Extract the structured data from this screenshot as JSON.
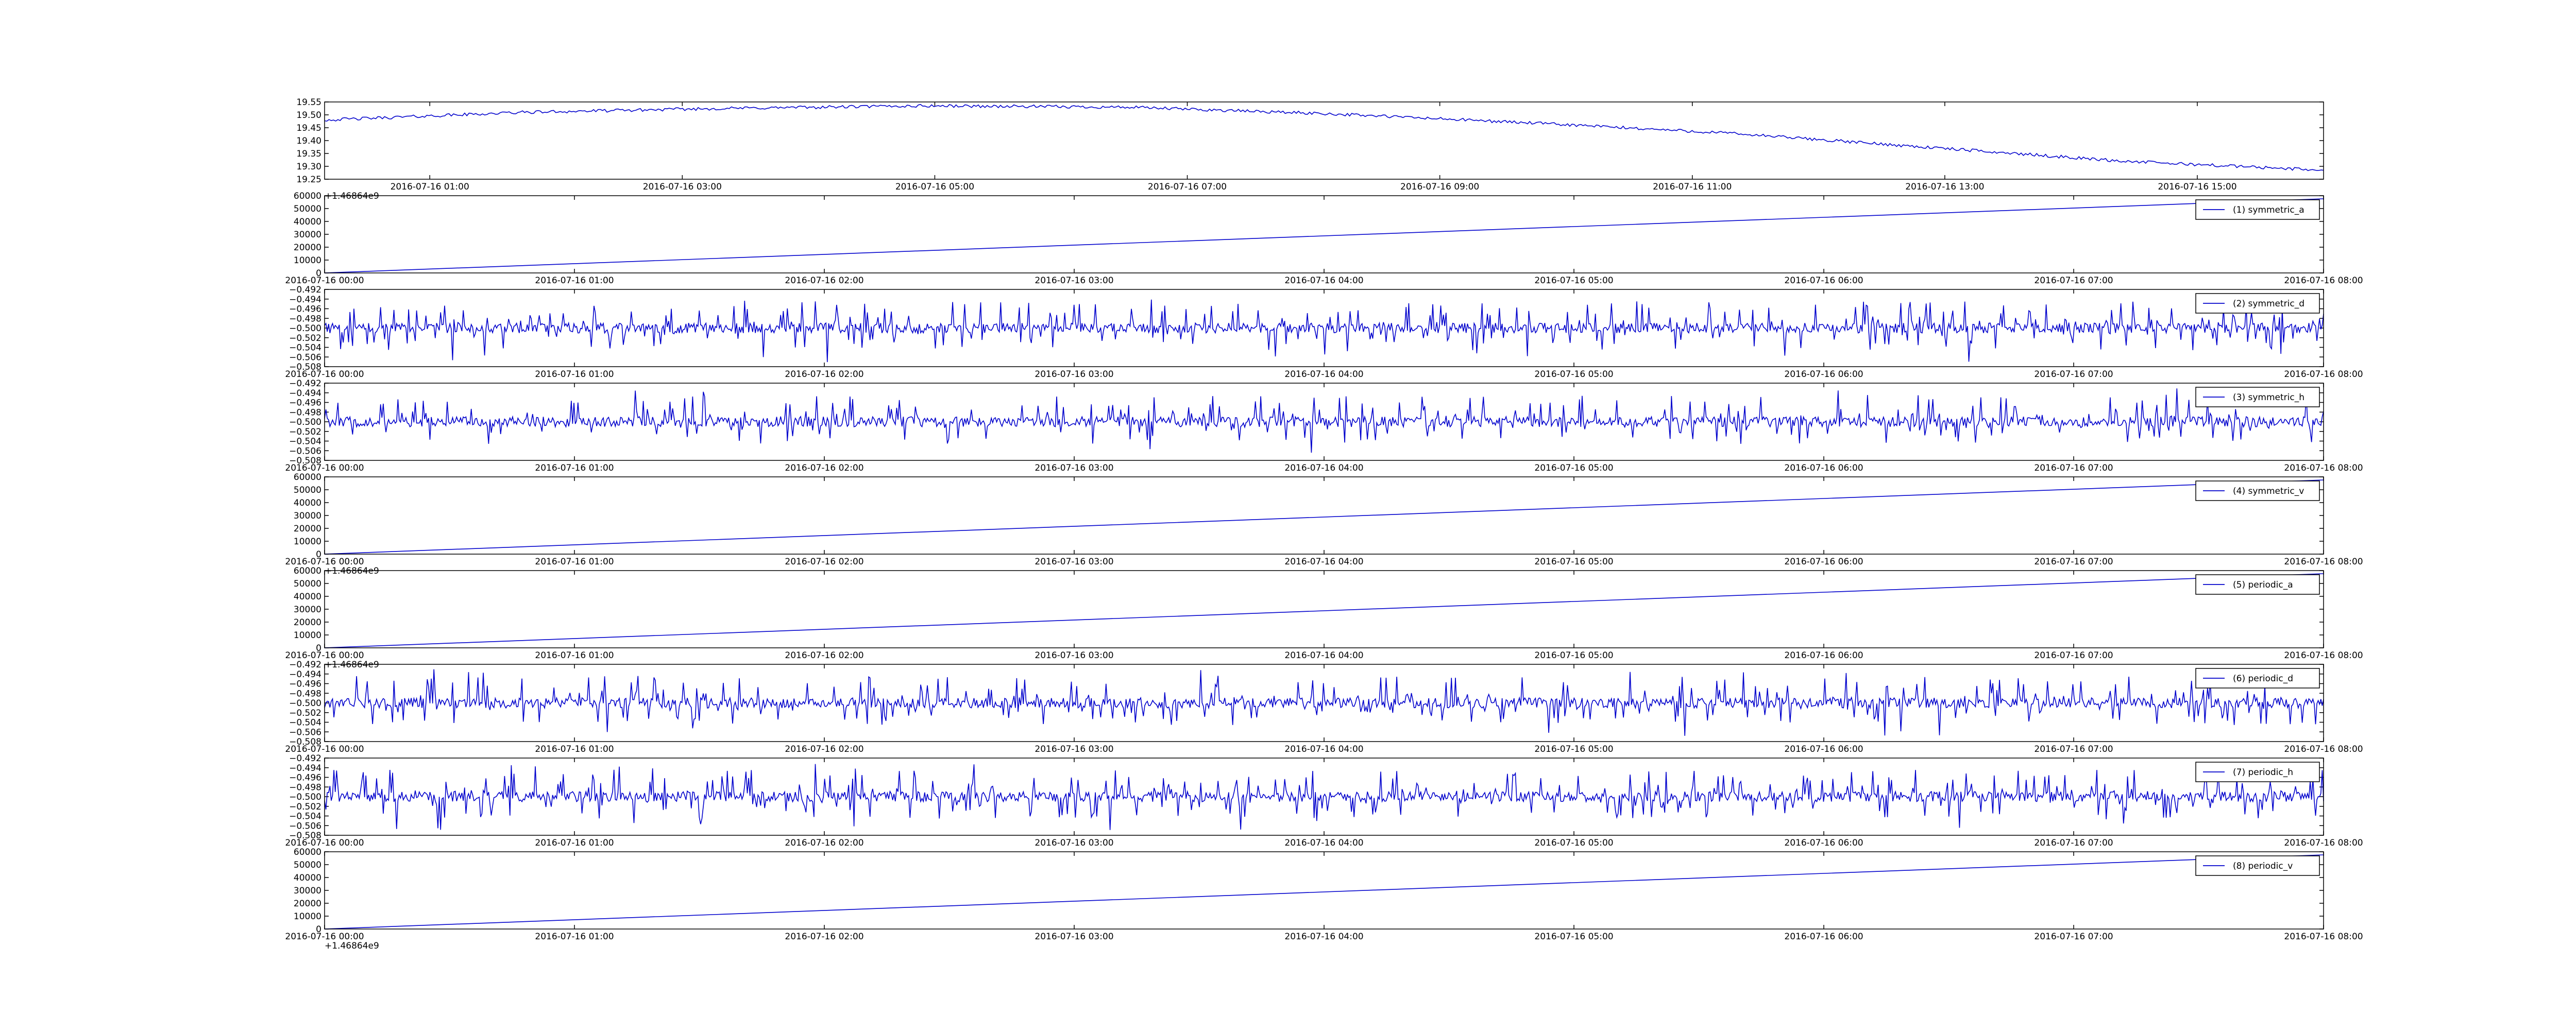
{
  "colors": {
    "line": "#0000cc",
    "axis": "#000000",
    "background": "#ffffff",
    "legend_border": "#000000"
  },
  "chart_data": [
    {
      "type": "line",
      "offset_label": "+1.46864e9",
      "x_ticks": [
        "2016-07-16 01:00",
        "2016-07-16 03:00",
        "2016-07-16 05:00",
        "2016-07-16 07:00",
        "2016-07-16 09:00",
        "2016-07-16 11:00",
        "2016-07-16 13:00",
        "2016-07-16 15:00"
      ],
      "y_ticks": [
        "19.55",
        "19.50",
        "19.45",
        "19.40",
        "19.35",
        "19.30",
        "19.25"
      ],
      "ylim": [
        19.25,
        19.55
      ],
      "series": [
        {
          "x": [
            0,
            0.1,
            0.2,
            0.3,
            0.4,
            0.5,
            0.6,
            0.7,
            0.8,
            0.9,
            1.0
          ],
          "values": [
            19.48,
            19.51,
            19.525,
            19.535,
            19.53,
            19.505,
            19.47,
            19.43,
            19.375,
            19.32,
            19.285
          ]
        }
      ]
    },
    {
      "type": "line",
      "x_ticks": [
        "2016-07-16 00:00",
        "2016-07-16 01:00",
        "2016-07-16 02:00",
        "2016-07-16 03:00",
        "2016-07-16 04:00",
        "2016-07-16 05:00",
        "2016-07-16 06:00",
        "2016-07-16 07:00",
        "2016-07-16 08:00"
      ],
      "y_ticks": [
        "60000",
        "50000",
        "40000",
        "30000",
        "20000",
        "10000",
        "0"
      ],
      "ylim": [
        0,
        60000
      ],
      "legend_position": "upper-right",
      "series": [
        {
          "name": "(1) symmetric_a",
          "x": [
            0,
            8
          ],
          "values": [
            0,
            57600
          ]
        }
      ]
    },
    {
      "type": "line",
      "x_ticks": [
        "2016-07-16 00:00",
        "2016-07-16 01:00",
        "2016-07-16 02:00",
        "2016-07-16 03:00",
        "2016-07-16 04:00",
        "2016-07-16 05:00",
        "2016-07-16 06:00",
        "2016-07-16 07:00",
        "2016-07-16 08:00"
      ],
      "y_ticks": [
        "−0.492",
        "−0.494",
        "−0.496",
        "−0.498",
        "−0.500",
        "−0.502",
        "−0.504",
        "−0.506",
        "−0.508"
      ],
      "ylim": [
        -0.508,
        -0.492
      ],
      "center": -0.5,
      "amplitude": 0.006,
      "legend_position": "upper-right",
      "series": [
        {
          "name": "(2) symmetric_d"
        }
      ]
    },
    {
      "type": "line",
      "x_ticks": [
        "2016-07-16 00:00",
        "2016-07-16 01:00",
        "2016-07-16 02:00",
        "2016-07-16 03:00",
        "2016-07-16 04:00",
        "2016-07-16 05:00",
        "2016-07-16 06:00",
        "2016-07-16 07:00",
        "2016-07-16 08:00"
      ],
      "y_ticks": [
        "−0.492",
        "−0.494",
        "−0.496",
        "−0.498",
        "−0.500",
        "−0.502",
        "−0.504",
        "−0.506",
        "−0.508"
      ],
      "ylim": [
        -0.508,
        -0.492
      ],
      "center": -0.5,
      "amplitude": 0.006,
      "legend_position": "upper-right",
      "series": [
        {
          "name": "(3) symmetric_h"
        }
      ]
    },
    {
      "type": "line",
      "offset_label": "+1.46864e9",
      "x_ticks": [
        "2016-07-16 00:00",
        "2016-07-16 01:00",
        "2016-07-16 02:00",
        "2016-07-16 03:00",
        "2016-07-16 04:00",
        "2016-07-16 05:00",
        "2016-07-16 06:00",
        "2016-07-16 07:00",
        "2016-07-16 08:00"
      ],
      "y_ticks": [
        "60000",
        "50000",
        "40000",
        "30000",
        "20000",
        "10000",
        "0"
      ],
      "ylim": [
        0,
        60000
      ],
      "legend_position": "upper-right",
      "series": [
        {
          "name": "(4) symmetric_v",
          "x": [
            0,
            8
          ],
          "values": [
            0,
            57600
          ]
        }
      ]
    },
    {
      "type": "line",
      "offset_label": "+1.46864e9",
      "x_ticks": [
        "2016-07-16 00:00",
        "2016-07-16 01:00",
        "2016-07-16 02:00",
        "2016-07-16 03:00",
        "2016-07-16 04:00",
        "2016-07-16 05:00",
        "2016-07-16 06:00",
        "2016-07-16 07:00",
        "2016-07-16 08:00"
      ],
      "y_ticks": [
        "60000",
        "50000",
        "40000",
        "30000",
        "20000",
        "10000",
        "0"
      ],
      "ylim": [
        0,
        60000
      ],
      "legend_position": "upper-right",
      "series": [
        {
          "name": "(5) periodic_a",
          "x": [
            0,
            8
          ],
          "values": [
            0,
            57600
          ]
        }
      ]
    },
    {
      "type": "line",
      "x_ticks": [
        "2016-07-16 00:00",
        "2016-07-16 01:00",
        "2016-07-16 02:00",
        "2016-07-16 03:00",
        "2016-07-16 04:00",
        "2016-07-16 05:00",
        "2016-07-16 06:00",
        "2016-07-16 07:00",
        "2016-07-16 08:00"
      ],
      "y_ticks": [
        "−0.492",
        "−0.494",
        "−0.496",
        "−0.498",
        "−0.500",
        "−0.502",
        "−0.504",
        "−0.506",
        "−0.508"
      ],
      "ylim": [
        -0.508,
        -0.492
      ],
      "center": -0.5,
      "amplitude": 0.006,
      "legend_position": "upper-right",
      "series": [
        {
          "name": "(6) periodic_d"
        }
      ]
    },
    {
      "type": "line",
      "x_ticks": [
        "2016-07-16 00:00",
        "2016-07-16 01:00",
        "2016-07-16 02:00",
        "2016-07-16 03:00",
        "2016-07-16 04:00",
        "2016-07-16 05:00",
        "2016-07-16 06:00",
        "2016-07-16 07:00",
        "2016-07-16 08:00"
      ],
      "y_ticks": [
        "−0.492",
        "−0.494",
        "−0.496",
        "−0.498",
        "−0.500",
        "−0.502",
        "−0.504",
        "−0.506",
        "−0.508"
      ],
      "ylim": [
        -0.508,
        -0.492
      ],
      "center": -0.5,
      "amplitude": 0.006,
      "legend_position": "upper-right",
      "series": [
        {
          "name": "(7) periodic_h"
        }
      ]
    },
    {
      "type": "line",
      "offset_label": "+1.46864e9",
      "x_ticks": [
        "2016-07-16 00:00",
        "2016-07-16 01:00",
        "2016-07-16 02:00",
        "2016-07-16 03:00",
        "2016-07-16 04:00",
        "2016-07-16 05:00",
        "2016-07-16 06:00",
        "2016-07-16 07:00",
        "2016-07-16 08:00"
      ],
      "y_ticks": [
        "60000",
        "50000",
        "40000",
        "30000",
        "20000",
        "10000",
        "0"
      ],
      "ylim": [
        0,
        60000
      ],
      "legend_position": "upper-right",
      "series": [
        {
          "name": "(8) periodic_v",
          "x": [
            0,
            8
          ],
          "values": [
            0,
            57600
          ]
        }
      ]
    }
  ]
}
